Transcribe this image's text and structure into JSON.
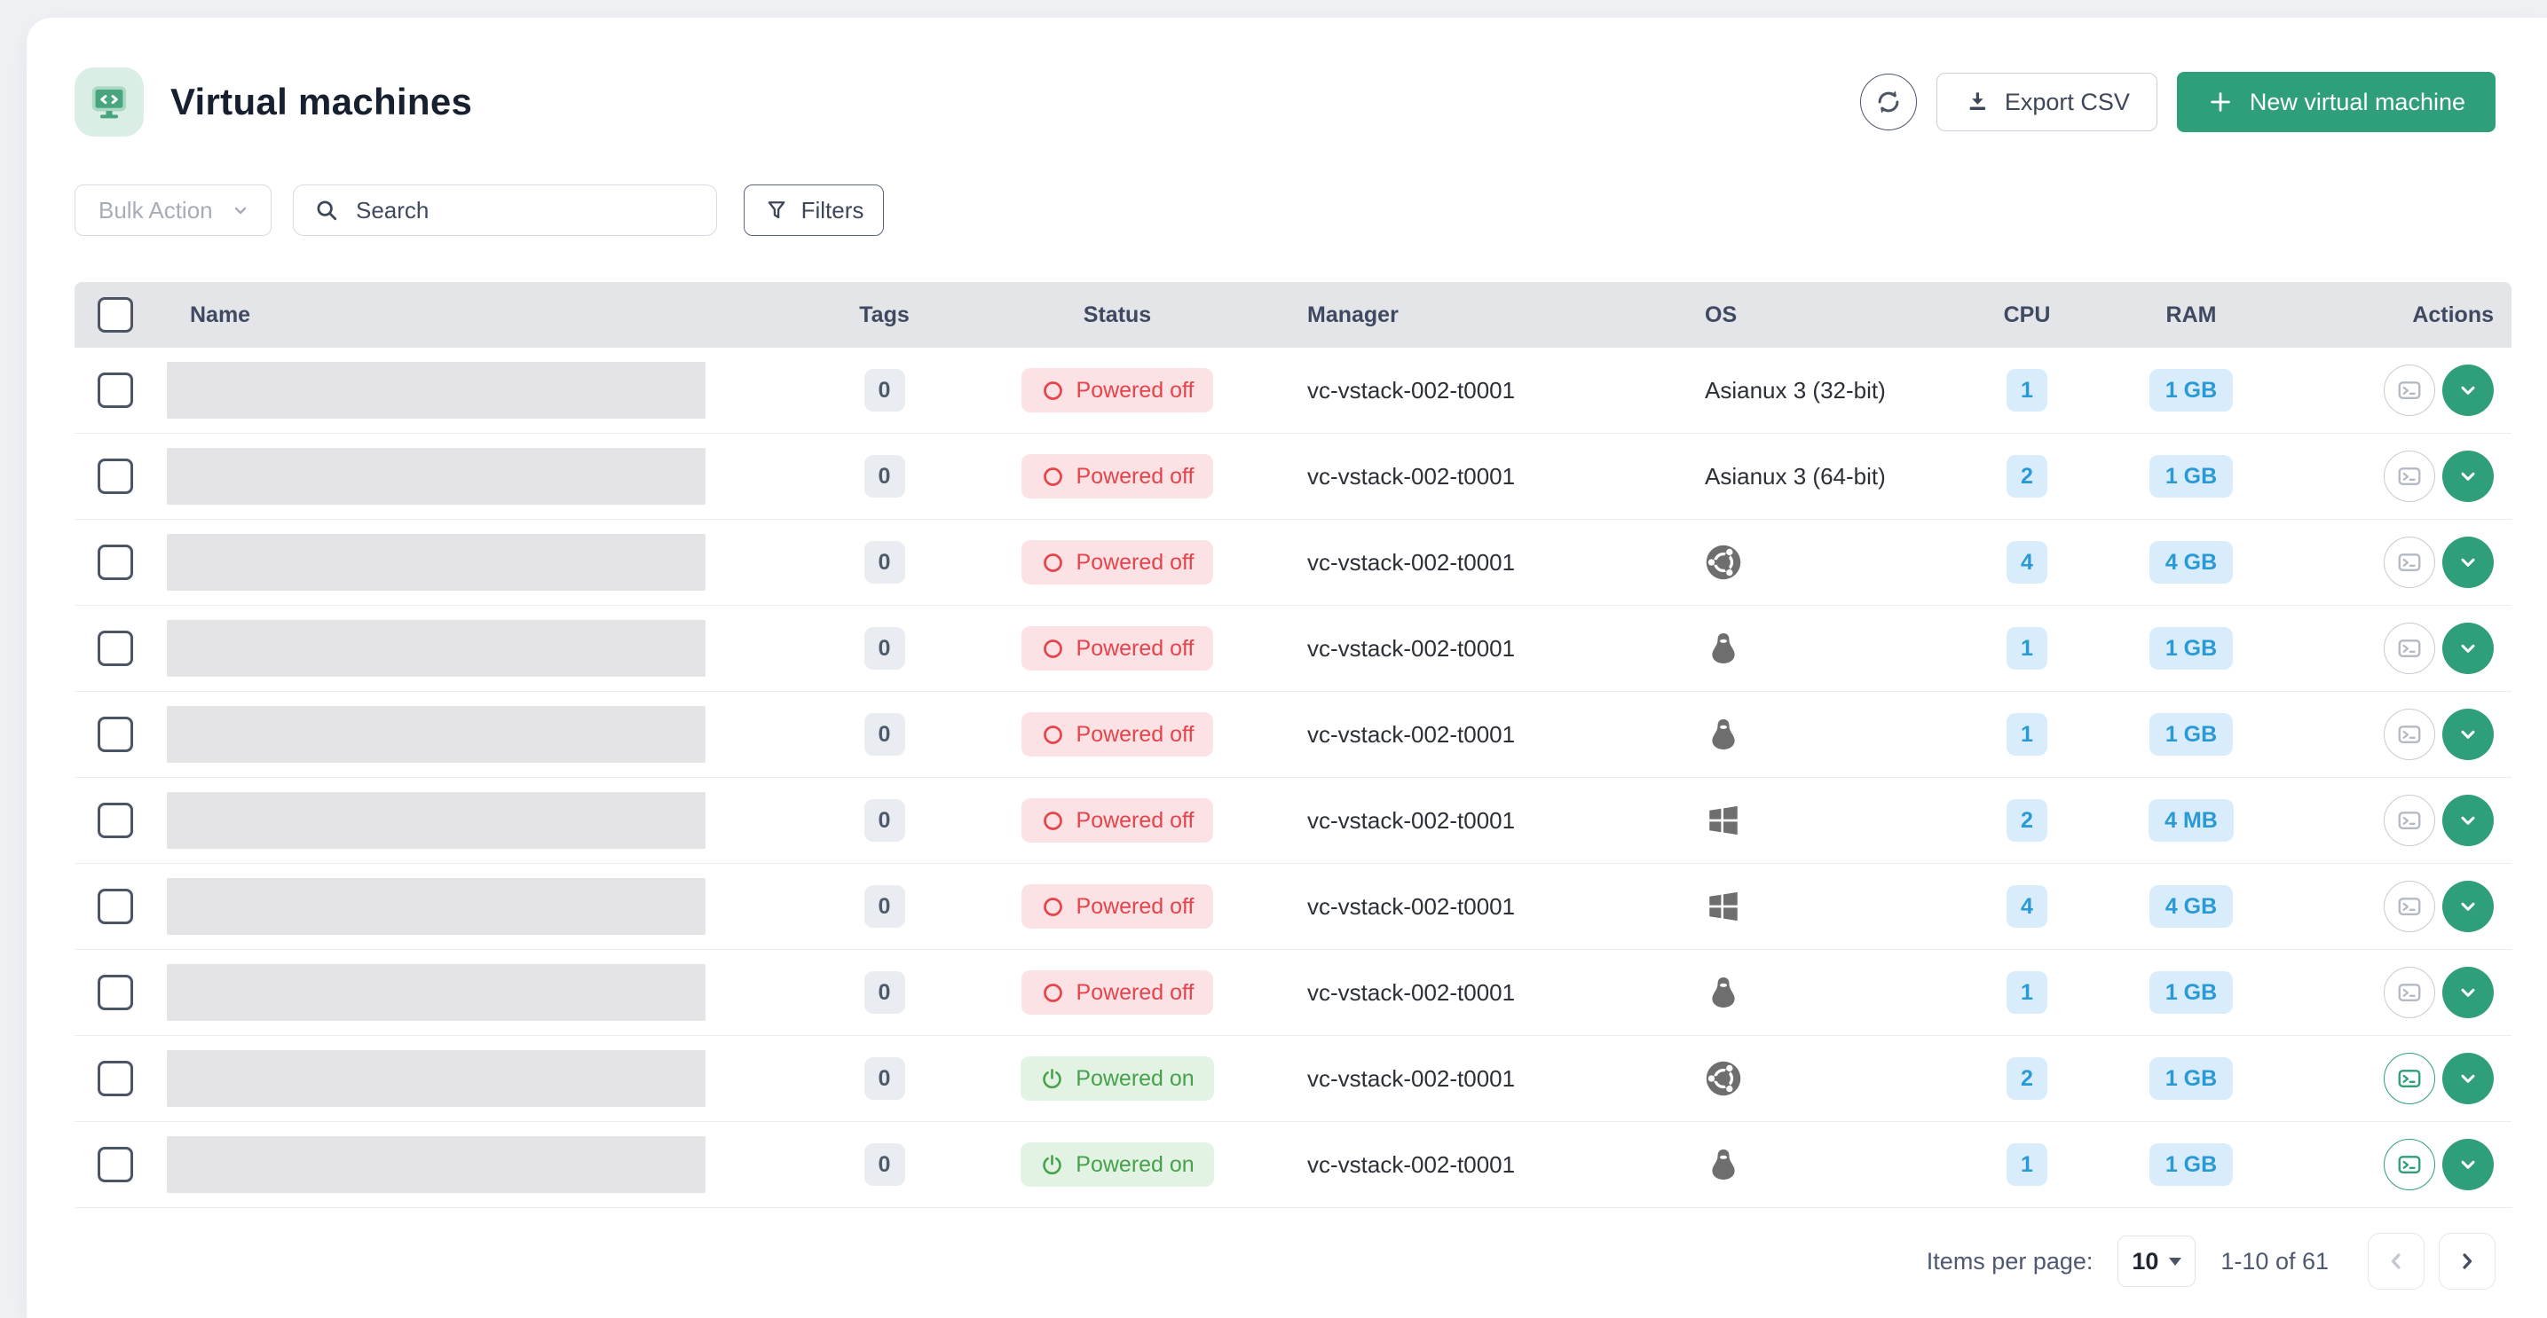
{
  "page": {
    "title": "Virtual machines"
  },
  "header": {
    "export_csv": "Export CSV",
    "new_vm": "New virtual machine"
  },
  "toolbar": {
    "bulk_action": "Bulk Action",
    "search_placeholder": "Search",
    "filters": "Filters"
  },
  "table": {
    "columns": [
      "Name",
      "Tags",
      "Status",
      "Manager",
      "OS",
      "CPU",
      "RAM",
      "Actions"
    ],
    "rows": [
      {
        "tags": "0",
        "status": "Powered off",
        "manager": "vc-vstack-002-t0001",
        "os": {
          "type": "text",
          "label": "Asianux 3 (32-bit)"
        },
        "cpu": "1",
        "ram": "1 GB"
      },
      {
        "tags": "0",
        "status": "Powered off",
        "manager": "vc-vstack-002-t0001",
        "os": {
          "type": "text",
          "label": "Asianux 3 (64-bit)"
        },
        "cpu": "2",
        "ram": "1 GB"
      },
      {
        "tags": "0",
        "status": "Powered off",
        "manager": "vc-vstack-002-t0001",
        "os": {
          "type": "icon",
          "name": "ubuntu"
        },
        "cpu": "4",
        "ram": "4 GB"
      },
      {
        "tags": "0",
        "status": "Powered off",
        "manager": "vc-vstack-002-t0001",
        "os": {
          "type": "icon",
          "name": "linux"
        },
        "cpu": "1",
        "ram": "1 GB"
      },
      {
        "tags": "0",
        "status": "Powered off",
        "manager": "vc-vstack-002-t0001",
        "os": {
          "type": "icon",
          "name": "linux"
        },
        "cpu": "1",
        "ram": "1 GB"
      },
      {
        "tags": "0",
        "status": "Powered off",
        "manager": "vc-vstack-002-t0001",
        "os": {
          "type": "icon",
          "name": "windows"
        },
        "cpu": "2",
        "ram": "4 MB"
      },
      {
        "tags": "0",
        "status": "Powered off",
        "manager": "vc-vstack-002-t0001",
        "os": {
          "type": "icon",
          "name": "windows"
        },
        "cpu": "4",
        "ram": "4 GB"
      },
      {
        "tags": "0",
        "status": "Powered off",
        "manager": "vc-vstack-002-t0001",
        "os": {
          "type": "icon",
          "name": "linux"
        },
        "cpu": "1",
        "ram": "1 GB"
      },
      {
        "tags": "0",
        "status": "Powered on",
        "manager": "vc-vstack-002-t0001",
        "os": {
          "type": "icon",
          "name": "ubuntu"
        },
        "cpu": "2",
        "ram": "1 GB"
      },
      {
        "tags": "0",
        "status": "Powered on",
        "manager": "vc-vstack-002-t0001",
        "os": {
          "type": "icon",
          "name": "linux"
        },
        "cpu": "1",
        "ram": "1 GB"
      }
    ]
  },
  "pagination": {
    "items_per_page": "Items per page:",
    "page_size": "10",
    "range": "1-10 of 61"
  },
  "colors": {
    "accent_green": "#2f9e7b",
    "powered_off_text": "#e6434a",
    "powered_off_bg": "#fce2e5",
    "powered_on_text": "#46a14c",
    "powered_on_bg": "#e3f3e3",
    "cpu_ram_badge_bg": "#d8ecfb",
    "cpu_ram_badge_text": "#2a9ad6"
  }
}
